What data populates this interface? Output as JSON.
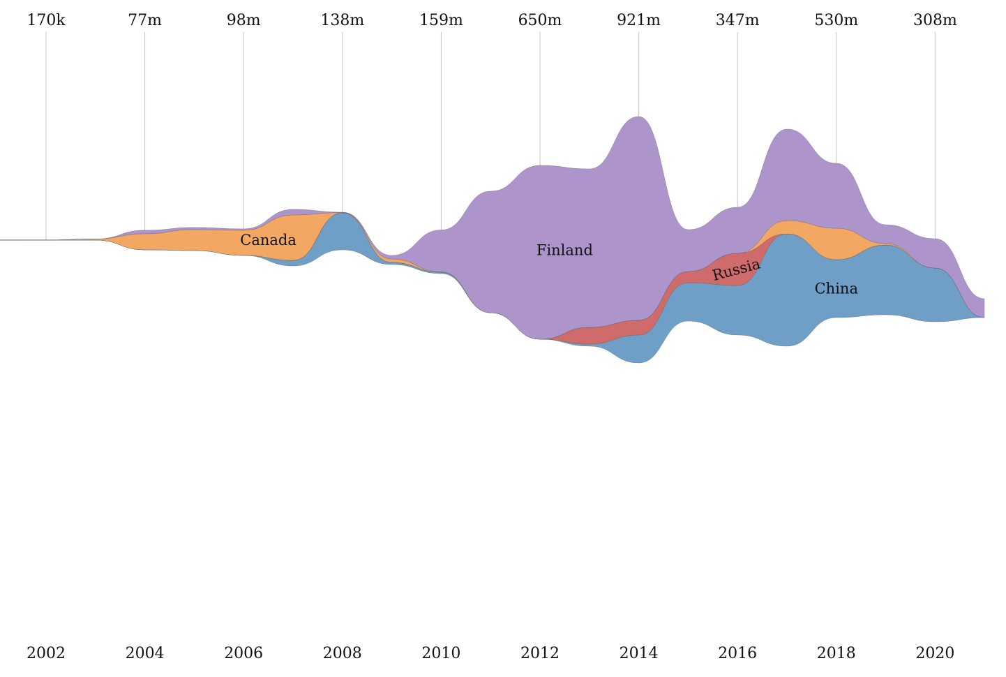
{
  "chart_data": {
    "type": "area",
    "subtype": "streamgraph",
    "title": "",
    "xlabel": "",
    "ylabel": "",
    "x_tick_labels": [
      "2002",
      "2004",
      "2006",
      "2008",
      "2010",
      "2012",
      "2014",
      "2016",
      "2018",
      "2020"
    ],
    "top_labels": [
      "170k",
      "77m",
      "98m",
      "138m",
      "159m",
      "650m",
      "921m",
      "347m",
      "530m",
      "308m"
    ],
    "x": [
      2001.5,
      2002,
      2003,
      2004,
      2005,
      2006,
      2007,
      2008,
      2009,
      2010,
      2011,
      2012,
      2013,
      2014,
      2015,
      2016,
      2017,
      2018,
      2019,
      2020,
      2021
    ],
    "baseline_y_units": [
      0,
      0,
      0,
      -14,
      -15,
      -22,
      -37,
      -14,
      -35,
      -48,
      -104,
      -142,
      -152,
      -176,
      -116,
      -136,
      -152,
      -111,
      -107,
      -117,
      -111
    ],
    "series": [
      {
        "name": "China",
        "color": "#6f9ec7",
        "values": [
          0.05,
          0.05,
          0.05,
          0.1,
          0.1,
          0.1,
          8,
          53,
          3,
          2,
          0,
          0,
          3,
          40,
          55,
          71,
          161,
          83,
          100,
          77,
          0
        ]
      },
      {
        "name": "Russia",
        "color": "#d06b6b",
        "values": [
          0,
          0,
          0,
          0,
          0,
          0,
          0,
          0,
          0,
          0,
          0,
          0,
          24,
          21,
          16,
          46,
          0,
          0,
          0,
          0,
          0
        ]
      },
      {
        "name": "Canada",
        "color": "#f2a863",
        "values": [
          0.05,
          0.1,
          1.5,
          23,
          30,
          36,
          65,
          0.5,
          5,
          0.5,
          0,
          0,
          0,
          0,
          0,
          0,
          19,
          45,
          2,
          0,
          0
        ]
      },
      {
        "name": "Finland",
        "color": "#ad95cc",
        "values": [
          0,
          0,
          0,
          5,
          3,
          2,
          8,
          0.5,
          5,
          60,
          174,
          249,
          227,
          292,
          60,
          66,
          131,
          93,
          27,
          42,
          27
        ]
      }
    ]
  }
}
